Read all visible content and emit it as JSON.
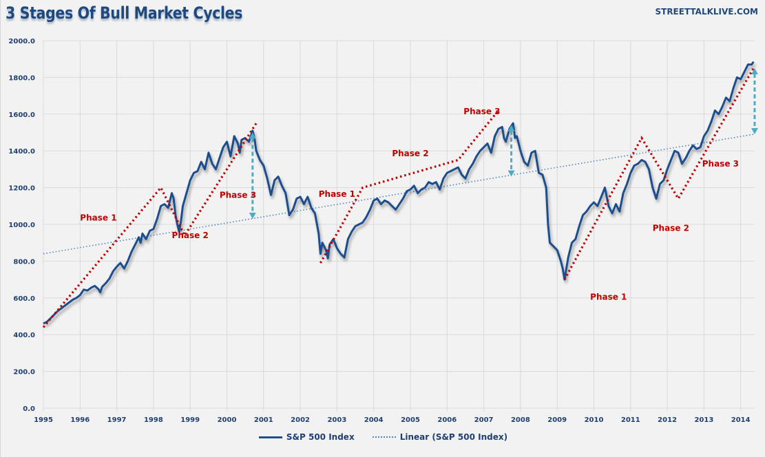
{
  "title": "3 Stages Of Bull Market Cycles",
  "brand": "STREETTALKLIVE.COM",
  "colors": {
    "series": "#1f4e8c",
    "trend": "#4f81bd",
    "phase": "#c00000",
    "arrow": "#4bacc6",
    "axis_text": "#1f3f6f",
    "grid": "#d9d9d9"
  },
  "legend": {
    "items": [
      {
        "label": "S&P 500 Index",
        "style": "solid"
      },
      {
        "label": "Linear (S&P 500 Index)",
        "style": "dotted"
      }
    ]
  },
  "chart_data": {
    "type": "line",
    "title": "3 Stages Of Bull Market Cycles",
    "xlabel": "",
    "ylabel": "",
    "xlim": [
      1995.0,
      2014.4
    ],
    "ylim": [
      0,
      2000
    ],
    "grid": true,
    "legend_position": "bottom",
    "x_ticks": [
      "1995",
      "1996",
      "1997",
      "1998",
      "1999",
      "2000",
      "2001",
      "2002",
      "2003",
      "2004",
      "2005",
      "2006",
      "2007",
      "2008",
      "2009",
      "2010",
      "2011",
      "2012",
      "2013",
      "2014"
    ],
    "y_ticks": [
      "0.0",
      "200.0",
      "400.0",
      "600.0",
      "800.0",
      "1000.0",
      "1200.0",
      "1400.0",
      "1600.0",
      "1800.0",
      "2000.0"
    ],
    "series": [
      {
        "name": "S&P 500 Index",
        "points": [
          [
            1995.0,
            460
          ],
          [
            1995.1,
            470
          ],
          [
            1995.2,
            490
          ],
          [
            1995.3,
            510
          ],
          [
            1995.4,
            530
          ],
          [
            1995.5,
            545
          ],
          [
            1995.6,
            560
          ],
          [
            1995.7,
            575
          ],
          [
            1995.8,
            590
          ],
          [
            1995.9,
            600
          ],
          [
            1996.0,
            615
          ],
          [
            1996.1,
            645
          ],
          [
            1996.2,
            640
          ],
          [
            1996.3,
            655
          ],
          [
            1996.4,
            665
          ],
          [
            1996.5,
            648
          ],
          [
            1996.55,
            630
          ],
          [
            1996.6,
            660
          ],
          [
            1996.7,
            680
          ],
          [
            1996.8,
            705
          ],
          [
            1996.9,
            745
          ],
          [
            1997.0,
            770
          ],
          [
            1997.1,
            790
          ],
          [
            1997.2,
            760
          ],
          [
            1997.3,
            800
          ],
          [
            1997.4,
            850
          ],
          [
            1997.5,
            890
          ],
          [
            1997.6,
            930
          ],
          [
            1997.65,
            900
          ],
          [
            1997.7,
            950
          ],
          [
            1997.8,
            920
          ],
          [
            1997.9,
            965
          ],
          [
            1998.0,
            975
          ],
          [
            1998.1,
            1030
          ],
          [
            1998.2,
            1100
          ],
          [
            1998.3,
            1110
          ],
          [
            1998.4,
            1090
          ],
          [
            1998.5,
            1170
          ],
          [
            1998.55,
            1140
          ],
          [
            1998.6,
            1050
          ],
          [
            1998.65,
            1000
          ],
          [
            1998.7,
            960
          ],
          [
            1998.75,
            1020
          ],
          [
            1998.8,
            1100
          ],
          [
            1998.9,
            1170
          ],
          [
            1999.0,
            1240
          ],
          [
            1999.1,
            1280
          ],
          [
            1999.2,
            1290
          ],
          [
            1999.3,
            1340
          ],
          [
            1999.4,
            1300
          ],
          [
            1999.5,
            1390
          ],
          [
            1999.6,
            1330
          ],
          [
            1999.7,
            1300
          ],
          [
            1999.8,
            1360
          ],
          [
            1999.9,
            1420
          ],
          [
            2000.0,
            1450
          ],
          [
            2000.1,
            1370
          ],
          [
            2000.2,
            1480
          ],
          [
            2000.3,
            1440
          ],
          [
            2000.35,
            1390
          ],
          [
            2000.4,
            1460
          ],
          [
            2000.5,
            1470
          ],
          [
            2000.6,
            1450
          ],
          [
            2000.7,
            1510
          ],
          [
            2000.75,
            1470
          ],
          [
            2000.8,
            1400
          ],
          [
            2000.9,
            1350
          ],
          [
            2001.0,
            1320
          ],
          [
            2001.1,
            1250
          ],
          [
            2001.2,
            1160
          ],
          [
            2001.3,
            1240
          ],
          [
            2001.4,
            1260
          ],
          [
            2001.5,
            1210
          ],
          [
            2001.6,
            1170
          ],
          [
            2001.7,
            1050
          ],
          [
            2001.8,
            1080
          ],
          [
            2001.9,
            1140
          ],
          [
            2002.0,
            1150
          ],
          [
            2002.1,
            1110
          ],
          [
            2002.2,
            1150
          ],
          [
            2002.3,
            1090
          ],
          [
            2002.4,
            1060
          ],
          [
            2002.5,
            950
          ],
          [
            2002.55,
            840
          ],
          [
            2002.6,
            900
          ],
          [
            2002.7,
            860
          ],
          [
            2002.75,
            815
          ],
          [
            2002.8,
            890
          ],
          [
            2002.9,
            920
          ],
          [
            2003.0,
            870
          ],
          [
            2003.1,
            840
          ],
          [
            2003.2,
            820
          ],
          [
            2003.3,
            920
          ],
          [
            2003.4,
            960
          ],
          [
            2003.5,
            990
          ],
          [
            2003.6,
            1000
          ],
          [
            2003.7,
            1010
          ],
          [
            2003.8,
            1040
          ],
          [
            2003.9,
            1080
          ],
          [
            2004.0,
            1130
          ],
          [
            2004.1,
            1140
          ],
          [
            2004.2,
            1110
          ],
          [
            2004.3,
            1130
          ],
          [
            2004.4,
            1120
          ],
          [
            2004.5,
            1100
          ],
          [
            2004.6,
            1080
          ],
          [
            2004.7,
            1110
          ],
          [
            2004.8,
            1140
          ],
          [
            2004.9,
            1180
          ],
          [
            2005.0,
            1190
          ],
          [
            2005.1,
            1210
          ],
          [
            2005.2,
            1170
          ],
          [
            2005.3,
            1190
          ],
          [
            2005.4,
            1200
          ],
          [
            2005.5,
            1230
          ],
          [
            2005.6,
            1220
          ],
          [
            2005.7,
            1230
          ],
          [
            2005.8,
            1190
          ],
          [
            2005.9,
            1250
          ],
          [
            2006.0,
            1280
          ],
          [
            2006.1,
            1290
          ],
          [
            2006.2,
            1300
          ],
          [
            2006.3,
            1310
          ],
          [
            2006.4,
            1270
          ],
          [
            2006.5,
            1250
          ],
          [
            2006.6,
            1300
          ],
          [
            2006.7,
            1330
          ],
          [
            2006.8,
            1370
          ],
          [
            2006.9,
            1400
          ],
          [
            2007.0,
            1420
          ],
          [
            2007.1,
            1440
          ],
          [
            2007.2,
            1390
          ],
          [
            2007.3,
            1480
          ],
          [
            2007.4,
            1520
          ],
          [
            2007.5,
            1530
          ],
          [
            2007.55,
            1470
          ],
          [
            2007.6,
            1450
          ],
          [
            2007.7,
            1520
          ],
          [
            2007.8,
            1550
          ],
          [
            2007.85,
            1470
          ],
          [
            2007.9,
            1480
          ],
          [
            2008.0,
            1400
          ],
          [
            2008.1,
            1340
          ],
          [
            2008.2,
            1320
          ],
          [
            2008.3,
            1390
          ],
          [
            2008.4,
            1400
          ],
          [
            2008.5,
            1280
          ],
          [
            2008.6,
            1270
          ],
          [
            2008.7,
            1200
          ],
          [
            2008.75,
            1000
          ],
          [
            2008.8,
            900
          ],
          [
            2008.9,
            880
          ],
          [
            2009.0,
            860
          ],
          [
            2009.1,
            800
          ],
          [
            2009.15,
            760
          ],
          [
            2009.2,
            700
          ],
          [
            2009.3,
            820
          ],
          [
            2009.4,
            900
          ],
          [
            2009.5,
            920
          ],
          [
            2009.6,
            990
          ],
          [
            2009.7,
            1050
          ],
          [
            2009.8,
            1070
          ],
          [
            2009.9,
            1100
          ],
          [
            2010.0,
            1120
          ],
          [
            2010.1,
            1100
          ],
          [
            2010.2,
            1150
          ],
          [
            2010.3,
            1200
          ],
          [
            2010.4,
            1100
          ],
          [
            2010.5,
            1060
          ],
          [
            2010.6,
            1110
          ],
          [
            2010.7,
            1070
          ],
          [
            2010.8,
            1170
          ],
          [
            2010.9,
            1220
          ],
          [
            2011.0,
            1280
          ],
          [
            2011.1,
            1320
          ],
          [
            2011.2,
            1330
          ],
          [
            2011.3,
            1350
          ],
          [
            2011.4,
            1340
          ],
          [
            2011.5,
            1300
          ],
          [
            2011.6,
            1200
          ],
          [
            2011.7,
            1140
          ],
          [
            2011.8,
            1220
          ],
          [
            2011.9,
            1240
          ],
          [
            2012.0,
            1300
          ],
          [
            2012.1,
            1350
          ],
          [
            2012.2,
            1400
          ],
          [
            2012.3,
            1390
          ],
          [
            2012.4,
            1330
          ],
          [
            2012.5,
            1360
          ],
          [
            2012.6,
            1400
          ],
          [
            2012.7,
            1430
          ],
          [
            2012.8,
            1410
          ],
          [
            2012.9,
            1420
          ],
          [
            2013.0,
            1480
          ],
          [
            2013.1,
            1510
          ],
          [
            2013.2,
            1560
          ],
          [
            2013.3,
            1620
          ],
          [
            2013.4,
            1600
          ],
          [
            2013.5,
            1640
          ],
          [
            2013.6,
            1690
          ],
          [
            2013.7,
            1670
          ],
          [
            2013.8,
            1740
          ],
          [
            2013.9,
            1800
          ],
          [
            2014.0,
            1790
          ],
          [
            2014.1,
            1830
          ],
          [
            2014.2,
            1870
          ],
          [
            2014.3,
            1870
          ],
          [
            2014.35,
            1885
          ]
        ]
      },
      {
        "name": "Linear (S&P 500 Index)",
        "points": [
          [
            1995.0,
            840
          ],
          [
            2014.35,
            1490
          ]
        ]
      }
    ],
    "annotations": {
      "phase_lines": [
        {
          "name": "1995-2000 cycle",
          "points": [
            [
              1995.0,
              440
            ],
            [
              1998.2,
              1200
            ],
            [
              1998.85,
              940
            ],
            [
              2000.8,
              1550
            ]
          ]
        },
        {
          "name": "2002-2007 cycle",
          "points": [
            [
              2002.55,
              790
            ],
            [
              2003.7,
              1200
            ],
            [
              2006.3,
              1350
            ],
            [
              2007.4,
              1620
            ]
          ]
        },
        {
          "name": "2009-2014 cycle",
          "points": [
            [
              2009.2,
              700
            ],
            [
              2011.3,
              1470
            ],
            [
              2012.3,
              1140
            ],
            [
              2014.35,
              1850
            ]
          ]
        }
      ],
      "labels": [
        {
          "text": "Phase 1",
          "x": 1996.0,
          "y": 1020
        },
        {
          "text": "Phase 2",
          "x": 1998.5,
          "y": 925
        },
        {
          "text": "Phase 3",
          "x": 1999.8,
          "y": 1145
        },
        {
          "text": "Phase 1",
          "x": 2002.5,
          "y": 1150
        },
        {
          "text": "Phase 2",
          "x": 2004.5,
          "y": 1370
        },
        {
          "text": "Phase 3",
          "x": 2006.45,
          "y": 1600
        },
        {
          "text": "Phase 1",
          "x": 2009.9,
          "y": 590
        },
        {
          "text": "Phase 2",
          "x": 2011.6,
          "y": 965
        },
        {
          "text": "Phase 3",
          "x": 2012.95,
          "y": 1315
        }
      ],
      "gap_arrows": [
        {
          "x": 2000.7,
          "top": 1500,
          "bottom": 1030
        },
        {
          "x": 2007.75,
          "top": 1540,
          "bottom": 1260
        },
        {
          "x": 2014.38,
          "top": 1850,
          "bottom": 1490
        }
      ]
    }
  }
}
